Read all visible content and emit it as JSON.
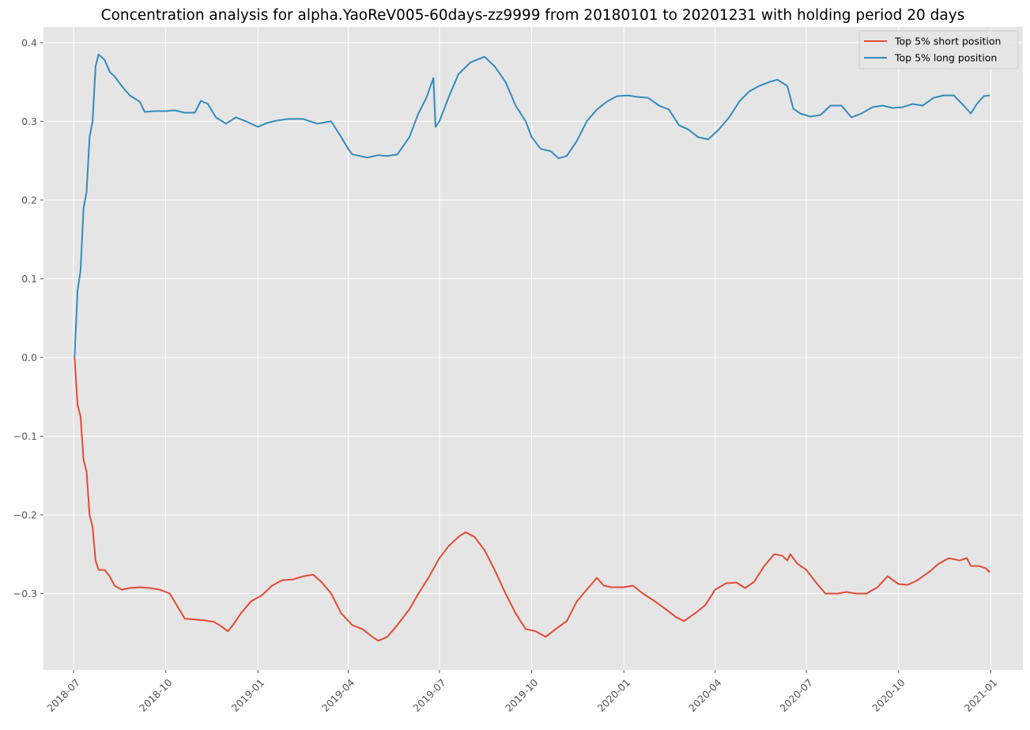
{
  "chart_data": {
    "type": "line",
    "title": "Concentration analysis for alpha.YaoReV005-60days-zz9999 from 20180101 to 20201231 with holding period 20 days",
    "xlabel": "",
    "ylabel": "",
    "xlim": [
      "2018-06-01",
      "2021-02-02"
    ],
    "ylim": [
      -0.397,
      0.42
    ],
    "x_ticks": [
      "2018-07",
      "2018-10",
      "2019-01",
      "2019-04",
      "2019-07",
      "2019-10",
      "2020-01",
      "2020-04",
      "2020-07",
      "2020-10",
      "2021-01"
    ],
    "y_ticks": [
      0.4,
      0.3,
      0.2,
      0.1,
      0.0,
      -0.1,
      -0.2,
      -0.3
    ],
    "y_tick_labels": [
      "0.4",
      "0.3",
      "0.2",
      "0.1",
      "0.0",
      "−0.1",
      "−0.2",
      "−0.3"
    ],
    "grid": true,
    "legend_position": "top-right",
    "series": [
      {
        "name": "Top 5% short position",
        "color": "#E24A33",
        "points": [
          [
            "2018-07-02",
            0.0
          ],
          [
            "2018-07-05",
            -0.06
          ],
          [
            "2018-07-08",
            -0.075
          ],
          [
            "2018-07-11",
            -0.13
          ],
          [
            "2018-07-14",
            -0.145
          ],
          [
            "2018-07-17",
            -0.2
          ],
          [
            "2018-07-20",
            -0.215
          ],
          [
            "2018-07-23",
            -0.258
          ],
          [
            "2018-07-26",
            -0.27
          ],
          [
            "2018-08-01",
            -0.27
          ],
          [
            "2018-08-06",
            -0.278
          ],
          [
            "2018-08-11",
            -0.29
          ],
          [
            "2018-08-18",
            -0.295
          ],
          [
            "2018-08-26",
            -0.293
          ],
          [
            "2018-09-05",
            -0.292
          ],
          [
            "2018-09-15",
            -0.293
          ],
          [
            "2018-09-25",
            -0.295
          ],
          [
            "2018-10-05",
            -0.3
          ],
          [
            "2018-10-12",
            -0.315
          ],
          [
            "2018-10-20",
            -0.332
          ],
          [
            "2018-10-30",
            -0.333
          ],
          [
            "2018-11-08",
            -0.334
          ],
          [
            "2018-11-18",
            -0.336
          ],
          [
            "2018-11-26",
            -0.342
          ],
          [
            "2018-12-02",
            -0.348
          ],
          [
            "2018-12-07",
            -0.34
          ],
          [
            "2018-12-15",
            -0.325
          ],
          [
            "2018-12-25",
            -0.31
          ],
          [
            "2019-01-05",
            -0.302
          ],
          [
            "2019-01-15",
            -0.29
          ],
          [
            "2019-01-25",
            -0.283
          ],
          [
            "2019-02-05",
            -0.282
          ],
          [
            "2019-02-15",
            -0.278
          ],
          [
            "2019-02-25",
            -0.276
          ],
          [
            "2019-03-05",
            -0.285
          ],
          [
            "2019-03-15",
            -0.3
          ],
          [
            "2019-03-25",
            -0.325
          ],
          [
            "2019-04-05",
            -0.34
          ],
          [
            "2019-04-15",
            -0.345
          ],
          [
            "2019-04-25",
            -0.355
          ],
          [
            "2019-05-01",
            -0.36
          ],
          [
            "2019-05-10",
            -0.355
          ],
          [
            "2019-05-20",
            -0.34
          ],
          [
            "2019-06-01",
            -0.32
          ],
          [
            "2019-06-10",
            -0.3
          ],
          [
            "2019-06-20",
            -0.28
          ],
          [
            "2019-07-01",
            -0.255
          ],
          [
            "2019-07-10",
            -0.24
          ],
          [
            "2019-07-20",
            -0.228
          ],
          [
            "2019-07-27",
            -0.222
          ],
          [
            "2019-08-05",
            -0.228
          ],
          [
            "2019-08-15",
            -0.245
          ],
          [
            "2019-08-25",
            -0.27
          ],
          [
            "2019-09-05",
            -0.3
          ],
          [
            "2019-09-15",
            -0.325
          ],
          [
            "2019-09-25",
            -0.345
          ],
          [
            "2019-10-05",
            -0.348
          ],
          [
            "2019-10-15",
            -0.355
          ],
          [
            "2019-10-25",
            -0.345
          ],
          [
            "2019-11-05",
            -0.335
          ],
          [
            "2019-11-15",
            -0.31
          ],
          [
            "2019-11-25",
            -0.295
          ],
          [
            "2019-12-05",
            -0.28
          ],
          [
            "2019-12-12",
            -0.29
          ],
          [
            "2019-12-20",
            -0.292
          ],
          [
            "2020-01-01",
            -0.292
          ],
          [
            "2020-01-10",
            -0.29
          ],
          [
            "2020-01-20",
            -0.3
          ],
          [
            "2020-02-01",
            -0.31
          ],
          [
            "2020-02-12",
            -0.32
          ],
          [
            "2020-02-22",
            -0.33
          ],
          [
            "2020-03-01",
            -0.335
          ],
          [
            "2020-03-12",
            -0.325
          ],
          [
            "2020-03-22",
            -0.315
          ],
          [
            "2020-04-01",
            -0.295
          ],
          [
            "2020-04-12",
            -0.287
          ],
          [
            "2020-04-22",
            -0.286
          ],
          [
            "2020-05-01",
            -0.293
          ],
          [
            "2020-05-10",
            -0.285
          ],
          [
            "2020-05-20",
            -0.265
          ],
          [
            "2020-05-30",
            -0.25
          ],
          [
            "2020-06-07",
            -0.252
          ],
          [
            "2020-06-12",
            -0.258
          ],
          [
            "2020-06-15",
            -0.25
          ],
          [
            "2020-06-22",
            -0.262
          ],
          [
            "2020-07-01",
            -0.27
          ],
          [
            "2020-07-10",
            -0.285
          ],
          [
            "2020-07-20",
            -0.3
          ],
          [
            "2020-08-01",
            -0.3
          ],
          [
            "2020-08-10",
            -0.298
          ],
          [
            "2020-08-20",
            -0.3
          ],
          [
            "2020-08-30",
            -0.3
          ],
          [
            "2020-09-10",
            -0.292
          ],
          [
            "2020-09-20",
            -0.278
          ],
          [
            "2020-10-01",
            -0.288
          ],
          [
            "2020-10-10",
            -0.289
          ],
          [
            "2020-10-20",
            -0.283
          ],
          [
            "2020-11-01",
            -0.272
          ],
          [
            "2020-11-10",
            -0.262
          ],
          [
            "2020-11-20",
            -0.255
          ],
          [
            "2020-12-01",
            -0.258
          ],
          [
            "2020-12-08",
            -0.255
          ],
          [
            "2020-12-12",
            -0.265
          ],
          [
            "2020-12-20",
            -0.265
          ],
          [
            "2020-12-27",
            -0.268
          ],
          [
            "2020-12-31",
            -0.273
          ]
        ]
      },
      {
        "name": "Top 5% long position",
        "color": "#348ABD",
        "points": [
          [
            "2018-07-02",
            0.0
          ],
          [
            "2018-07-05",
            0.085
          ],
          [
            "2018-07-08",
            0.11
          ],
          [
            "2018-07-11",
            0.19
          ],
          [
            "2018-07-14",
            0.21
          ],
          [
            "2018-07-17",
            0.28
          ],
          [
            "2018-07-20",
            0.3
          ],
          [
            "2018-07-23",
            0.37
          ],
          [
            "2018-07-26",
            0.385
          ],
          [
            "2018-08-01",
            0.378
          ],
          [
            "2018-08-06",
            0.363
          ],
          [
            "2018-08-11",
            0.357
          ],
          [
            "2018-08-18",
            0.345
          ],
          [
            "2018-08-26",
            0.333
          ],
          [
            "2018-09-05",
            0.325
          ],
          [
            "2018-09-10",
            0.312
          ],
          [
            "2018-09-20",
            0.313
          ],
          [
            "2018-10-01",
            0.313
          ],
          [
            "2018-10-10",
            0.314
          ],
          [
            "2018-10-20",
            0.311
          ],
          [
            "2018-10-30",
            0.311
          ],
          [
            "2018-11-05",
            0.326
          ],
          [
            "2018-11-12",
            0.322
          ],
          [
            "2018-11-20",
            0.305
          ],
          [
            "2018-11-30",
            0.297
          ],
          [
            "2018-12-10",
            0.305
          ],
          [
            "2018-12-20",
            0.3
          ],
          [
            "2019-01-01",
            0.293
          ],
          [
            "2019-01-10",
            0.298
          ],
          [
            "2019-01-20",
            0.301
          ],
          [
            "2019-02-01",
            0.303
          ],
          [
            "2019-02-15",
            0.303
          ],
          [
            "2019-03-01",
            0.297
          ],
          [
            "2019-03-15",
            0.3
          ],
          [
            "2019-03-25",
            0.28
          ],
          [
            "2019-04-01",
            0.265
          ],
          [
            "2019-04-05",
            0.258
          ],
          [
            "2019-04-20",
            0.254
          ],
          [
            "2019-05-01",
            0.257
          ],
          [
            "2019-05-10",
            0.256
          ],
          [
            "2019-05-20",
            0.258
          ],
          [
            "2019-06-01",
            0.28
          ],
          [
            "2019-06-10",
            0.31
          ],
          [
            "2019-06-18",
            0.33
          ],
          [
            "2019-06-25",
            0.355
          ],
          [
            "2019-06-27",
            0.293
          ],
          [
            "2019-07-01",
            0.3
          ],
          [
            "2019-07-10",
            0.33
          ],
          [
            "2019-07-20",
            0.36
          ],
          [
            "2019-08-01",
            0.375
          ],
          [
            "2019-08-15",
            0.382
          ],
          [
            "2019-08-25",
            0.37
          ],
          [
            "2019-09-05",
            0.35
          ],
          [
            "2019-09-15",
            0.32
          ],
          [
            "2019-09-25",
            0.3
          ],
          [
            "2019-10-01",
            0.28
          ],
          [
            "2019-10-10",
            0.265
          ],
          [
            "2019-10-20",
            0.262
          ],
          [
            "2019-10-28",
            0.253
          ],
          [
            "2019-11-05",
            0.256
          ],
          [
            "2019-11-15",
            0.275
          ],
          [
            "2019-11-25",
            0.3
          ],
          [
            "2019-12-05",
            0.315
          ],
          [
            "2019-12-15",
            0.325
          ],
          [
            "2019-12-25",
            0.332
          ],
          [
            "2020-01-05",
            0.333
          ],
          [
            "2020-01-15",
            0.331
          ],
          [
            "2020-01-25",
            0.33
          ],
          [
            "2020-02-05",
            0.32
          ],
          [
            "2020-02-15",
            0.315
          ],
          [
            "2020-02-25",
            0.295
          ],
          [
            "2020-03-05",
            0.29
          ],
          [
            "2020-03-15",
            0.28
          ],
          [
            "2020-03-25",
            0.277
          ],
          [
            "2020-04-05",
            0.29
          ],
          [
            "2020-04-15",
            0.305
          ],
          [
            "2020-04-25",
            0.325
          ],
          [
            "2020-05-05",
            0.338
          ],
          [
            "2020-05-15",
            0.345
          ],
          [
            "2020-05-25",
            0.35
          ],
          [
            "2020-06-02",
            0.353
          ],
          [
            "2020-06-12",
            0.345
          ],
          [
            "2020-06-18",
            0.316
          ],
          [
            "2020-06-25",
            0.31
          ],
          [
            "2020-07-05",
            0.306
          ],
          [
            "2020-07-15",
            0.308
          ],
          [
            "2020-07-25",
            0.32
          ],
          [
            "2020-08-05",
            0.32
          ],
          [
            "2020-08-15",
            0.305
          ],
          [
            "2020-08-25",
            0.31
          ],
          [
            "2020-09-05",
            0.318
          ],
          [
            "2020-09-15",
            0.32
          ],
          [
            "2020-09-25",
            0.317
          ],
          [
            "2020-10-05",
            0.318
          ],
          [
            "2020-10-15",
            0.322
          ],
          [
            "2020-10-25",
            0.32
          ],
          [
            "2020-11-05",
            0.33
          ],
          [
            "2020-11-15",
            0.333
          ],
          [
            "2020-11-25",
            0.333
          ],
          [
            "2020-12-05",
            0.32
          ],
          [
            "2020-12-12",
            0.31
          ],
          [
            "2020-12-18",
            0.322
          ],
          [
            "2020-12-25",
            0.332
          ],
          [
            "2020-12-31",
            0.333
          ]
        ]
      }
    ]
  }
}
